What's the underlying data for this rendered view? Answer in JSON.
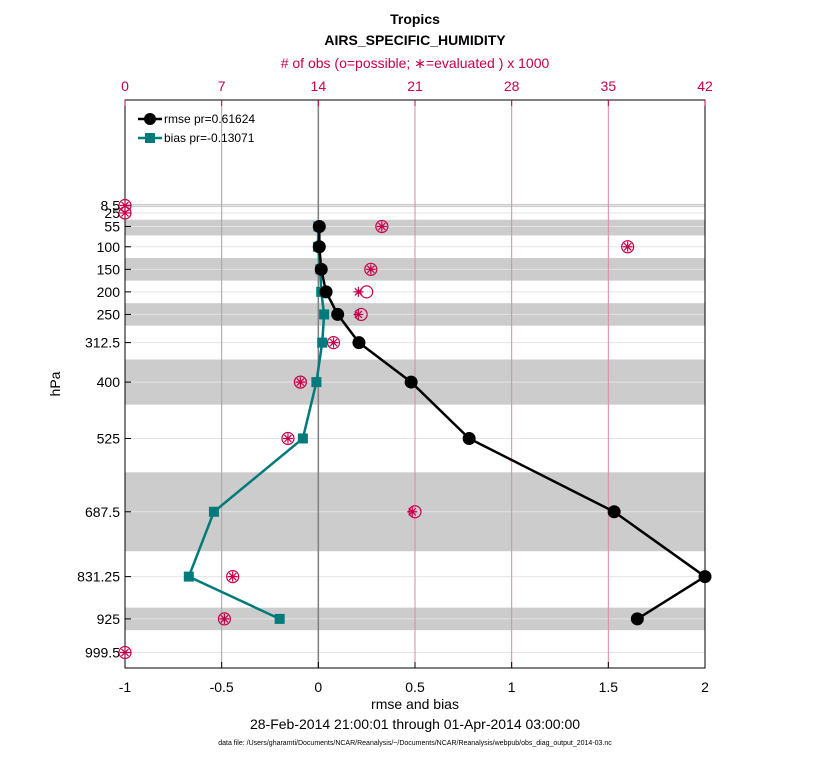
{
  "chart_data": {
    "type": "line",
    "title": "Tropics",
    "subtitle": "AIRS_SPECIFIC_HUMIDITY",
    "top_axis_label": "# of obs (o=possible; ∗=evaluated ) x 1000",
    "xlabel": "rmse and bias",
    "ylabel": "hPa",
    "date_range": "28-Feb-2014 21:00:01 through 01-Apr-2014 03:00:00",
    "footnote": "data file: /Users/gharamti/Documents/NCAR/Reanalysis/~/Documents/NCAR/Reanalysis/webpub/obs_diag_output_2014-03.nc",
    "xlim": [
      -1,
      2
    ],
    "x_ticks": [
      -1,
      -0.5,
      0,
      0.5,
      1,
      1.5,
      2
    ],
    "x_tick_labels": [
      "-1",
      "-0.5",
      "0",
      "0.5",
      "1",
      "1.5",
      "2"
    ],
    "top_xlim": [
      0,
      42
    ],
    "top_ticks": [
      0,
      7,
      14,
      21,
      28,
      35,
      42
    ],
    "top_tick_labels": [
      "0",
      "7",
      "14",
      "21",
      "28",
      "35",
      "42"
    ],
    "y_levels": [
      8.5,
      25,
      55,
      100,
      150,
      200,
      250,
      312.5,
      400,
      525,
      687.5,
      831.25,
      925,
      999.5
    ],
    "y_tick_labels": [
      "8.5",
      "25",
      "55",
      "100",
      "150",
      "200",
      "250",
      "312.5",
      "400",
      "525",
      "687.5",
      "831.25",
      "925",
      "999.5"
    ],
    "shaded_bands_hpa": [
      [
        5,
        12
      ],
      [
        40,
        75
      ],
      [
        125,
        175
      ],
      [
        225,
        275
      ],
      [
        350,
        450
      ],
      [
        600,
        775
      ],
      [
        900,
        950
      ]
    ],
    "series": [
      {
        "name": "rmse pr=0.61624",
        "color": "#000000",
        "levels": [
          55,
          100,
          150,
          200,
          250,
          312.5,
          400,
          525,
          687.5,
          831.25,
          925
        ],
        "values": [
          0.005,
          0.005,
          0.015,
          0.04,
          0.1,
          0.21,
          0.48,
          0.78,
          1.53,
          2.0,
          1.65
        ]
      },
      {
        "name": "bias pr=-0.13071",
        "color": "#007a7a",
        "levels": [
          55,
          100,
          150,
          200,
          250,
          312.5,
          400,
          525,
          687.5,
          831.25,
          925
        ],
        "values": [
          0.0,
          -0.002,
          0.01,
          0.015,
          0.03,
          0.02,
          -0.01,
          -0.08,
          -0.54,
          -0.67,
          -0.2
        ]
      }
    ],
    "obs_possible": {
      "levels": [
        8.5,
        25,
        55,
        100,
        150,
        200,
        250,
        312.5,
        400,
        525,
        687.5,
        831.25,
        925,
        999.5
      ],
      "values": [
        0,
        0,
        18.6,
        36.4,
        17.8,
        17.5,
        17.1,
        15.1,
        12.7,
        11.8,
        21.0,
        7.8,
        7.2,
        0
      ]
    },
    "obs_evaluated": {
      "levels": [
        8.5,
        25,
        55,
        100,
        150,
        200,
        250,
        312.5,
        400,
        525,
        687.5,
        831.25,
        925,
        999.5
      ],
      "values": [
        0,
        0,
        18.6,
        36.4,
        17.8,
        16.9,
        16.9,
        15.1,
        12.7,
        11.8,
        20.8,
        7.8,
        7.2,
        0
      ]
    }
  }
}
